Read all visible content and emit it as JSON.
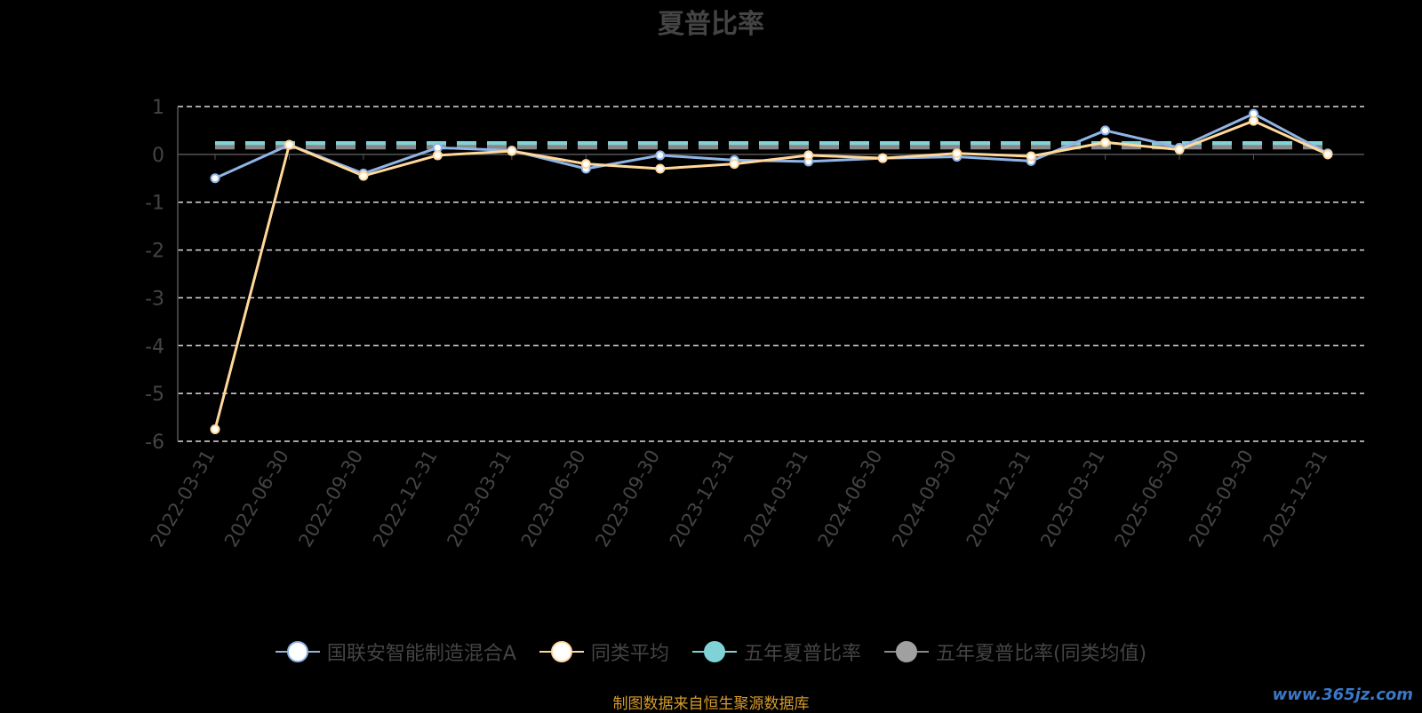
{
  "title": "夏普比率",
  "source_note": "制图数据来自恒生聚源数据库",
  "watermark": "www.365jz.com",
  "legend": [
    {
      "label": "国联安智能制造混合A",
      "color": "#8fb4e6",
      "fill": "#ffffff"
    },
    {
      "label": "同类平均",
      "color": "#ffd89a",
      "fill": "#ffffff"
    },
    {
      "label": "五年夏普比率",
      "color": "#7fd3d6",
      "fill": "#7fd3d6"
    },
    {
      "label": "五年夏普比率(同类均值)",
      "color": "#888888",
      "fill": "#a0a0a0"
    }
  ],
  "chart_data": {
    "type": "line",
    "title": "夏普比率",
    "categories": [
      "2022-03-31",
      "2022-06-30",
      "2022-09-30",
      "2022-12-31",
      "2023-03-31",
      "2023-06-30",
      "2023-09-30",
      "2023-12-31",
      "2024-03-31",
      "2024-06-30",
      "2024-09-30",
      "2024-12-31",
      "2025-03-31",
      "2025-06-30",
      "2025-09-30",
      "2025-12-31"
    ],
    "ylim": [
      -6,
      1
    ],
    "yticks": [
      1,
      0,
      -1,
      -2,
      -3,
      -4,
      -5,
      -6
    ],
    "grid": true,
    "legend_position": "bottom",
    "series": [
      {
        "name": "国联安智能制造混合A",
        "color": "#8fb4e6",
        "values": [
          -0.5,
          0.2,
          -0.4,
          0.14,
          0.08,
          -0.3,
          -0.02,
          -0.12,
          -0.15,
          -0.08,
          -0.05,
          -0.14,
          0.5,
          0.14,
          0.85,
          0.02
        ]
      },
      {
        "name": "同类平均",
        "color": "#ffd89a",
        "values": [
          -5.75,
          0.2,
          -0.45,
          -0.02,
          0.07,
          -0.2,
          -0.3,
          -0.2,
          -0.02,
          -0.08,
          0.02,
          -0.04,
          0.25,
          0.1,
          0.7,
          0.0
        ]
      },
      {
        "name": "五年夏普比率",
        "color": "#7fd3d6",
        "constant": 0.23
      },
      {
        "name": "五年夏普比率(同类均值)",
        "color": "#888888",
        "constant": 0.15
      }
    ]
  }
}
